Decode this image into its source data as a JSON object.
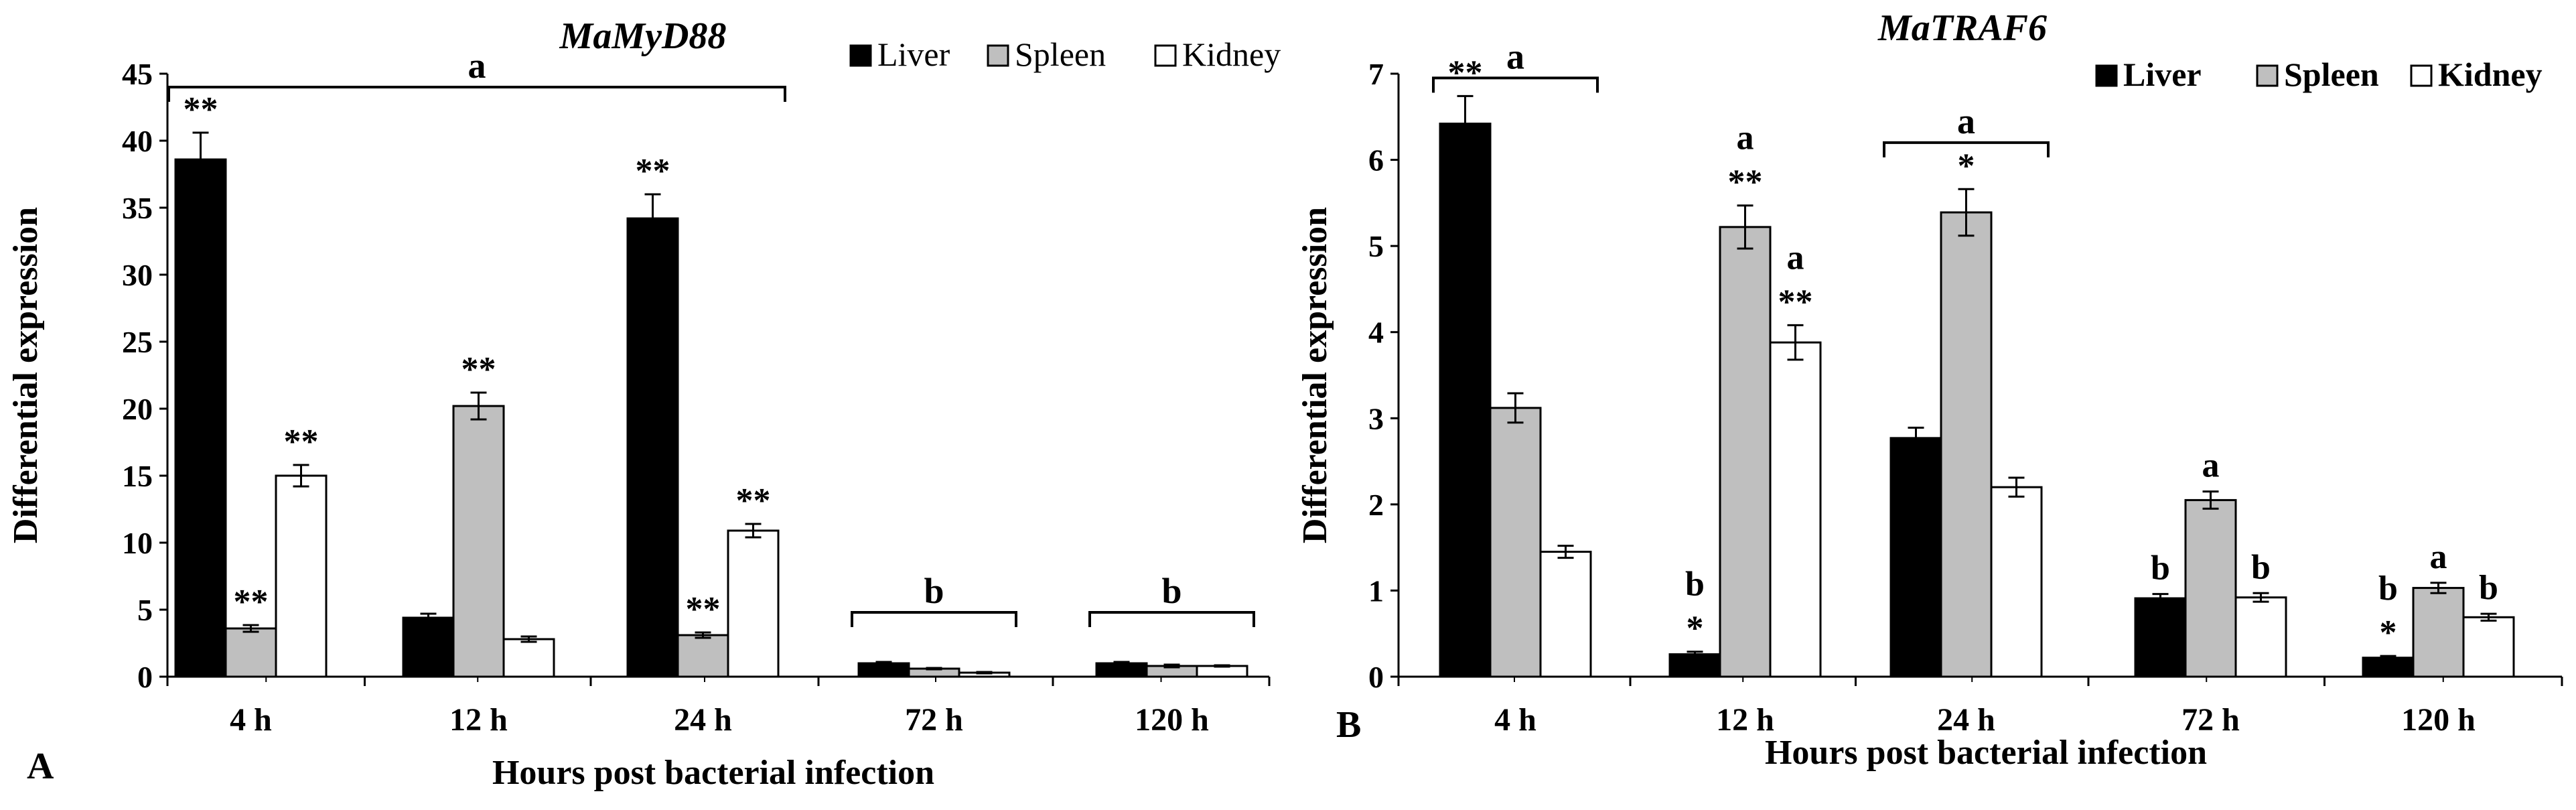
{
  "chart_data": [
    {
      "type": "bar",
      "panel_label": "A",
      "title": "MaMyD88",
      "xlabel": "Hours post bacterial infection",
      "ylabel": "Differential expression",
      "ylim": [
        0,
        45
      ],
      "yticks": [
        "0",
        "5",
        "10",
        "15",
        "20",
        "25",
        "30",
        "35",
        "40",
        "45"
      ],
      "categories": [
        "4 h",
        "12 h",
        "24 h",
        "72 h",
        "120 h"
      ],
      "legend_position": "top-right",
      "series": [
        {
          "name": "Liver",
          "color": "#000000",
          "values": [
            38.6,
            4.4,
            34.2,
            1.0,
            1.0
          ],
          "errors": [
            2.0,
            0.3,
            1.8,
            0.1,
            0.1
          ],
          "marks": [
            "**",
            "",
            "**",
            "",
            ""
          ]
        },
        {
          "name": "Spleen",
          "color": "#bfbfbf",
          "values": [
            3.6,
            20.2,
            3.1,
            0.6,
            0.8
          ],
          "errors": [
            0.25,
            1.0,
            0.2,
            0.05,
            0.1
          ],
          "marks": [
            "**",
            "**",
            "**",
            "",
            ""
          ]
        },
        {
          "name": "Kidney",
          "color": "#ffffff",
          "values": [
            15.0,
            2.8,
            10.9,
            0.3,
            0.8
          ],
          "errors": [
            0.8,
            0.2,
            0.5,
            0.05,
            0.05
          ],
          "marks": [
            "**",
            "",
            "**",
            "",
            ""
          ]
        }
      ],
      "brackets": [
        {
          "label": "a",
          "from": 0,
          "to": 2,
          "level": 44
        },
        {
          "label": "b",
          "from": 3,
          "to": 3,
          "level": 4.8
        },
        {
          "label": "b",
          "from": 4,
          "to": 4,
          "level": 4.8
        }
      ],
      "letters": []
    },
    {
      "type": "bar",
      "panel_label": "B",
      "title": "MaTRAF6",
      "xlabel": "Hours post bacterial infection",
      "ylabel": "Differential expression",
      "ylim": [
        0,
        7
      ],
      "yticks": [
        "0",
        "1",
        "2",
        "3",
        "4",
        "5",
        "6",
        "7"
      ],
      "categories": [
        "4 h",
        "12 h",
        "24 h",
        "72 h",
        "120 h"
      ],
      "legend_position": "top-right",
      "series": [
        {
          "name": "Liver",
          "color": "#000000",
          "values": [
            6.42,
            0.26,
            2.77,
            0.91,
            0.22
          ],
          "errors": [
            0.32,
            0.03,
            0.12,
            0.05,
            0.02
          ],
          "marks": [
            "**",
            "*",
            "",
            "",
            "*"
          ]
        },
        {
          "name": "Spleen",
          "color": "#bfbfbf",
          "values": [
            3.12,
            5.22,
            5.39,
            2.05,
            1.03
          ],
          "errors": [
            0.17,
            0.25,
            0.27,
            0.1,
            0.06
          ],
          "marks": [
            "",
            "**",
            "*",
            "",
            ""
          ]
        },
        {
          "name": "Kidney",
          "color": "#ffffff",
          "values": [
            1.45,
            3.88,
            2.2,
            0.92,
            0.69
          ],
          "errors": [
            0.07,
            0.2,
            0.11,
            0.05,
            0.04
          ],
          "marks": [
            "",
            "**",
            "",
            "",
            ""
          ]
        }
      ],
      "brackets": [
        {
          "label": "a",
          "from": 0,
          "to": 0,
          "level": 6.95
        },
        {
          "label": "a",
          "from": 2,
          "to": 2,
          "level": 6.2
        }
      ],
      "letters": [
        {
          "label": "a",
          "category": 1,
          "series": 1
        },
        {
          "label": "a",
          "category": 1,
          "series": 2
        },
        {
          "label": "b",
          "category": 1,
          "series": 0
        },
        {
          "label": "b",
          "category": 3,
          "series": 0
        },
        {
          "label": "a",
          "category": 3,
          "series": 1
        },
        {
          "label": "b",
          "category": 3,
          "series": 2
        },
        {
          "label": "b",
          "category": 4,
          "series": 0
        },
        {
          "label": "a",
          "category": 4,
          "series": 1
        },
        {
          "label": "b",
          "category": 4,
          "series": 2
        }
      ]
    }
  ]
}
